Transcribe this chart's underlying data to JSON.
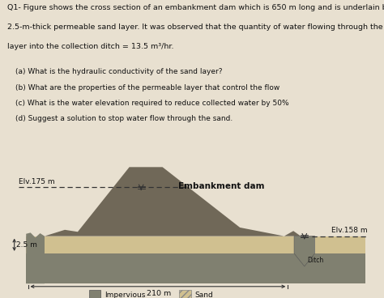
{
  "title_line1": "Q1- Figure shows the cross section of an embankment dam which is 650 m long and is underlain by a",
  "title_line2": "2.5-m-thick permeable sand layer. It was observed that the quantity of water flowing through the sand",
  "title_line3": "layer into the collection ditch = 13.5 m³/hr.",
  "questions": [
    "(a) What is the hydraulic conductivity of the sand layer?",
    "(b) What are the properties of the permeable layer that control the flow",
    "(c) What is the water elevation required to reduce collected water by 50%",
    "(d) Suggest a solution to stop water flow through the sand."
  ],
  "elv175_label": "Elv.175 m",
  "elv158_label": "Elv.158 m",
  "dim_25_label": "2.5 m",
  "dim_210_label": "210 m",
  "embankment_label": "Embankment dam",
  "ditch_label": "Ditch",
  "legend_impervious": "Impervious",
  "legend_sand": "Sand",
  "paper_color": "#e8e0d0",
  "diagram_bg": "#d8d0c0",
  "impervious_color": "#808070",
  "sand_fill": "#d0c090",
  "dam_color": "#706858",
  "text_color": "#111111"
}
